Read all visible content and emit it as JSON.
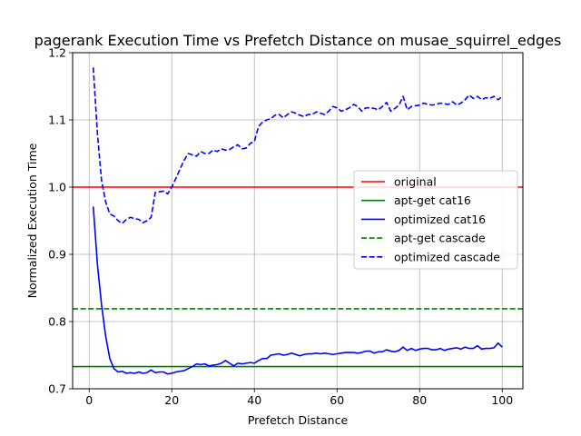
{
  "chart_data": {
    "type": "line",
    "title": "pagerank Execution Time vs Prefetch Distance on musae_squirrel_edges",
    "xlabel": "Prefetch Distance",
    "ylabel": "Normalized Execution Time",
    "xlim": [
      -4,
      105
    ],
    "ylim": [
      0.7,
      1.2
    ],
    "xticks": [
      0,
      20,
      40,
      60,
      80,
      100
    ],
    "yticks": [
      0.7,
      0.8,
      0.9,
      1.0,
      1.1,
      1.2
    ],
    "xtick_labels": [
      "0",
      "20",
      "40",
      "60",
      "80",
      "100"
    ],
    "ytick_labels": [
      "0.7",
      "0.8",
      "0.9",
      "1.0",
      "1.1",
      "1.2"
    ],
    "grid": true,
    "legend_position": "center-right",
    "series": [
      {
        "name": "original",
        "kind": "hline",
        "y": 1.0,
        "color": "#ff0000",
        "dash": "solid"
      },
      {
        "name": "apt-get cat16",
        "kind": "hline",
        "y": 0.733,
        "color": "#008000",
        "dash": "solid"
      },
      {
        "name": "optimized cat16",
        "kind": "line",
        "color": "#0000ff",
        "dash": "solid",
        "x": [
          1,
          2,
          3,
          4,
          5,
          6,
          7,
          8,
          9,
          10,
          11,
          12,
          13,
          14,
          15,
          16,
          17,
          18,
          19,
          20,
          21,
          22,
          23,
          24,
          25,
          26,
          27,
          28,
          29,
          30,
          31,
          32,
          33,
          34,
          35,
          36,
          37,
          38,
          39,
          40,
          41,
          42,
          43,
          44,
          45,
          46,
          47,
          48,
          49,
          50,
          51,
          52,
          53,
          54,
          55,
          56,
          57,
          58,
          59,
          60,
          61,
          62,
          63,
          64,
          65,
          66,
          67,
          68,
          69,
          70,
          71,
          72,
          73,
          74,
          75,
          76,
          77,
          78,
          79,
          80,
          81,
          82,
          83,
          84,
          85,
          86,
          87,
          88,
          89,
          90,
          91,
          92,
          93,
          94,
          95,
          96,
          97,
          98,
          99,
          100
        ],
        "y": [
          0.971,
          0.885,
          0.825,
          0.778,
          0.745,
          0.73,
          0.725,
          0.726,
          0.723,
          0.724,
          0.723,
          0.725,
          0.723,
          0.724,
          0.728,
          0.724,
          0.725,
          0.725,
          0.722,
          0.723,
          0.725,
          0.726,
          0.727,
          0.73,
          0.733,
          0.737,
          0.736,
          0.737,
          0.734,
          0.735,
          0.736,
          0.738,
          0.742,
          0.738,
          0.734,
          0.738,
          0.737,
          0.738,
          0.739,
          0.738,
          0.742,
          0.745,
          0.745,
          0.75,
          0.751,
          0.752,
          0.75,
          0.751,
          0.753,
          0.751,
          0.749,
          0.751,
          0.752,
          0.752,
          0.753,
          0.752,
          0.753,
          0.752,
          0.751,
          0.752,
          0.753,
          0.754,
          0.754,
          0.754,
          0.753,
          0.754,
          0.756,
          0.756,
          0.753,
          0.755,
          0.755,
          0.758,
          0.756,
          0.755,
          0.757,
          0.762,
          0.757,
          0.76,
          0.757,
          0.759,
          0.76,
          0.76,
          0.758,
          0.758,
          0.76,
          0.757,
          0.759,
          0.76,
          0.761,
          0.759,
          0.762,
          0.76,
          0.76,
          0.764,
          0.759,
          0.76,
          0.76,
          0.761,
          0.768,
          0.762
        ]
      },
      {
        "name": "apt-get cascade",
        "kind": "hline",
        "y": 0.819,
        "color": "#008000",
        "dash": "dashed"
      },
      {
        "name": "optimized cascade",
        "kind": "line",
        "color": "#0000ff",
        "dash": "dashed",
        "x": [
          1,
          2,
          3,
          4,
          5,
          6,
          7,
          8,
          9,
          10,
          11,
          12,
          13,
          14,
          15,
          16,
          17,
          18,
          19,
          20,
          21,
          22,
          23,
          24,
          25,
          26,
          27,
          28,
          29,
          30,
          31,
          32,
          33,
          34,
          35,
          36,
          37,
          38,
          39,
          40,
          41,
          42,
          43,
          44,
          45,
          46,
          47,
          48,
          49,
          50,
          51,
          52,
          53,
          54,
          55,
          56,
          57,
          58,
          59,
          60,
          61,
          62,
          63,
          64,
          65,
          66,
          67,
          68,
          69,
          70,
          71,
          72,
          73,
          74,
          75,
          76,
          77,
          78,
          79,
          80,
          81,
          82,
          83,
          84,
          85,
          86,
          87,
          88,
          89,
          90,
          91,
          92,
          93,
          94,
          95,
          96,
          97,
          98,
          99,
          100
        ],
        "y": [
          1.178,
          1.08,
          1.01,
          0.978,
          0.96,
          0.957,
          0.95,
          0.946,
          0.952,
          0.955,
          0.953,
          0.952,
          0.947,
          0.95,
          0.955,
          0.992,
          0.993,
          0.994,
          0.99,
          1.0,
          1.013,
          1.027,
          1.04,
          1.05,
          1.048,
          1.046,
          1.053,
          1.05,
          1.05,
          1.055,
          1.053,
          1.057,
          1.055,
          1.056,
          1.06,
          1.063,
          1.057,
          1.058,
          1.065,
          1.068,
          1.09,
          1.097,
          1.1,
          1.102,
          1.107,
          1.108,
          1.103,
          1.108,
          1.112,
          1.11,
          1.107,
          1.105,
          1.108,
          1.108,
          1.112,
          1.11,
          1.108,
          1.113,
          1.12,
          1.118,
          1.113,
          1.115,
          1.118,
          1.123,
          1.12,
          1.113,
          1.118,
          1.118,
          1.117,
          1.115,
          1.12,
          1.126,
          1.113,
          1.117,
          1.122,
          1.135,
          1.115,
          1.12,
          1.121,
          1.122,
          1.125,
          1.123,
          1.122,
          1.123,
          1.125,
          1.124,
          1.123,
          1.127,
          1.122,
          1.125,
          1.13,
          1.137,
          1.132,
          1.135,
          1.13,
          1.133,
          1.132,
          1.135,
          1.13,
          1.135
        ]
      }
    ]
  }
}
